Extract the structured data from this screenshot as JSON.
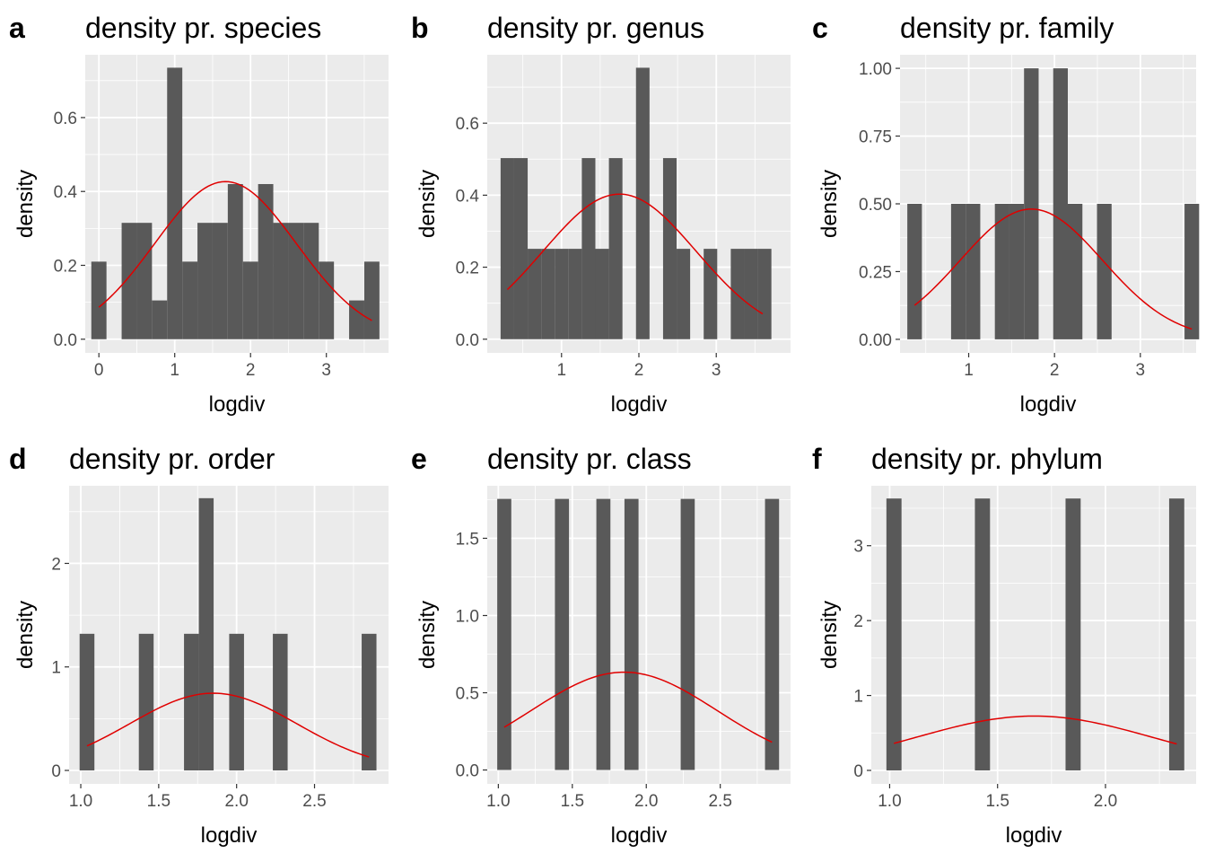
{
  "colors": {
    "panel_bg": "#ebebeb",
    "grid": "#ffffff",
    "bar": "#595959",
    "curve": "#e00000",
    "tick": "#4d4d4d",
    "text": "#000000"
  },
  "chart_data": [
    {
      "letter": "a",
      "type": "bar",
      "title": "density pr. species",
      "xlabel": "logdiv",
      "ylabel": "density",
      "xlim": [
        -0.18,
        3.82
      ],
      "ylim": [
        -0.037,
        0.77
      ],
      "xticks": [
        {
          "v": 0,
          "label": "0"
        },
        {
          "v": 1,
          "label": "1"
        },
        {
          "v": 2,
          "label": "2"
        },
        {
          "v": 3,
          "label": "3"
        }
      ],
      "yticks": [
        {
          "v": 0,
          "label": "0.0"
        },
        {
          "v": 0.2,
          "label": "0.2"
        },
        {
          "v": 0.4,
          "label": "0.4"
        },
        {
          "v": 0.6,
          "label": "0.6"
        }
      ],
      "bin_width": 0.2,
      "bins": [
        {
          "x": 0.0,
          "density": 0.21
        },
        {
          "x": 0.4,
          "density": 0.315
        },
        {
          "x": 0.6,
          "density": 0.315
        },
        {
          "x": 0.8,
          "density": 0.105
        },
        {
          "x": 1.0,
          "density": 0.735
        },
        {
          "x": 1.2,
          "density": 0.21
        },
        {
          "x": 1.4,
          "density": 0.315
        },
        {
          "x": 1.6,
          "density": 0.315
        },
        {
          "x": 1.8,
          "density": 0.42
        },
        {
          "x": 2.0,
          "density": 0.21
        },
        {
          "x": 2.2,
          "density": 0.42
        },
        {
          "x": 2.4,
          "density": 0.315
        },
        {
          "x": 2.6,
          "density": 0.315
        },
        {
          "x": 2.8,
          "density": 0.315
        },
        {
          "x": 3.0,
          "density": 0.21
        },
        {
          "x": 3.4,
          "density": 0.105
        },
        {
          "x": 3.6,
          "density": 0.21
        }
      ],
      "normal_curve": {
        "mean": 1.67,
        "sd": 0.935,
        "xmin": 0.0,
        "xmax": 3.6
      }
    },
    {
      "letter": "b",
      "type": "bar",
      "title": "density pr. genus",
      "xlabel": "logdiv",
      "ylabel": "density",
      "xlim": [
        0.04,
        3.96
      ],
      "ylim": [
        -0.038,
        0.79
      ],
      "xticks": [
        {
          "v": 1,
          "label": "1"
        },
        {
          "v": 2,
          "label": "2"
        },
        {
          "v": 3,
          "label": "3"
        }
      ],
      "yticks": [
        {
          "v": 0,
          "label": "0.0"
        },
        {
          "v": 0.2,
          "label": "0.2"
        },
        {
          "v": 0.4,
          "label": "0.4"
        },
        {
          "v": 0.6,
          "label": "0.6"
        }
      ],
      "bin_width": 0.175,
      "bins": [
        {
          "x": 0.3,
          "density": 0.503
        },
        {
          "x": 0.475,
          "density": 0.503
        },
        {
          "x": 0.65,
          "density": 0.251
        },
        {
          "x": 0.825,
          "density": 0.251
        },
        {
          "x": 1.0,
          "density": 0.251
        },
        {
          "x": 1.175,
          "density": 0.251
        },
        {
          "x": 1.35,
          "density": 0.503
        },
        {
          "x": 1.525,
          "density": 0.251
        },
        {
          "x": 1.7,
          "density": 0.503
        },
        {
          "x": 2.05,
          "density": 0.754
        },
        {
          "x": 2.4,
          "density": 0.503
        },
        {
          "x": 2.575,
          "density": 0.251
        },
        {
          "x": 2.925,
          "density": 0.251
        },
        {
          "x": 3.275,
          "density": 0.251
        },
        {
          "x": 3.45,
          "density": 0.251
        },
        {
          "x": 3.625,
          "density": 0.251
        }
      ],
      "normal_curve": {
        "mean": 1.75,
        "sd": 0.99,
        "xmin": 0.3,
        "xmax": 3.6
      }
    },
    {
      "letter": "c",
      "type": "bar",
      "title": "density pr. family",
      "xlabel": "logdiv",
      "ylabel": "density",
      "xlim": [
        0.2,
        3.65
      ],
      "ylim": [
        -0.05,
        1.05
      ],
      "xticks": [
        {
          "v": 1,
          "label": "1"
        },
        {
          "v": 2,
          "label": "2"
        },
        {
          "v": 3,
          "label": "3"
        }
      ],
      "yticks": [
        {
          "v": 0,
          "label": "0.00"
        },
        {
          "v": 0.25,
          "label": "0.25"
        },
        {
          "v": 0.5,
          "label": "0.50"
        },
        {
          "v": 0.75,
          "label": "0.75"
        },
        {
          "v": 1.0,
          "label": "1.00"
        }
      ],
      "bin_width": 0.17,
      "bins": [
        {
          "x": 0.37,
          "density": 0.5
        },
        {
          "x": 0.88,
          "density": 0.5
        },
        {
          "x": 1.05,
          "density": 0.5
        },
        {
          "x": 1.39,
          "density": 0.5
        },
        {
          "x": 1.56,
          "density": 0.5
        },
        {
          "x": 1.73,
          "density": 1.0
        },
        {
          "x": 2.07,
          "density": 1.0
        },
        {
          "x": 2.24,
          "density": 0.5
        },
        {
          "x": 2.58,
          "density": 0.5
        },
        {
          "x": 3.6,
          "density": 0.5
        }
      ],
      "normal_curve": {
        "mean": 1.73,
        "sd": 0.83,
        "xmin": 0.37,
        "xmax": 3.6
      }
    },
    {
      "letter": "d",
      "type": "bar",
      "title": "density pr. order",
      "xlabel": "logdiv",
      "ylabel": "density",
      "xlim": [
        0.925,
        2.975
      ],
      "ylim": [
        -0.13,
        2.75
      ],
      "xticks": [
        {
          "v": 1.0,
          "label": "1.0"
        },
        {
          "v": 1.5,
          "label": "1.5"
        },
        {
          "v": 2.0,
          "label": "2.0"
        },
        {
          "v": 2.5,
          "label": "2.5"
        }
      ],
      "yticks": [
        {
          "v": 0,
          "label": "0"
        },
        {
          "v": 1,
          "label": "1"
        },
        {
          "v": 2,
          "label": "2"
        }
      ],
      "bin_width": 0.095,
      "bins": [
        {
          "x": 1.04,
          "density": 1.32
        },
        {
          "x": 1.42,
          "density": 1.32
        },
        {
          "x": 1.71,
          "density": 1.32
        },
        {
          "x": 1.805,
          "density": 2.63
        },
        {
          "x": 2.0,
          "density": 1.32
        },
        {
          "x": 2.28,
          "density": 1.32
        },
        {
          "x": 2.85,
          "density": 1.32
        }
      ],
      "normal_curve": {
        "mean": 1.85,
        "sd": 0.535,
        "xmin": 1.04,
        "xmax": 2.85
      }
    },
    {
      "letter": "e",
      "type": "bar",
      "title": "density pr. class",
      "xlabel": "logdiv",
      "ylabel": "density",
      "xlim": [
        0.925,
        2.975
      ],
      "ylim": [
        -0.09,
        1.84
      ],
      "xticks": [
        {
          "v": 1.0,
          "label": "1.0"
        },
        {
          "v": 1.5,
          "label": "1.5"
        },
        {
          "v": 2.0,
          "label": "2.0"
        },
        {
          "v": 2.5,
          "label": "2.5"
        }
      ],
      "yticks": [
        {
          "v": 0,
          "label": "0.0"
        },
        {
          "v": 0.5,
          "label": "0.5"
        },
        {
          "v": 1.0,
          "label": "1.0"
        },
        {
          "v": 1.5,
          "label": "1.5"
        }
      ],
      "bin_width": 0.095,
      "bins": [
        {
          "x": 1.04,
          "density": 1.755
        },
        {
          "x": 1.43,
          "density": 1.755
        },
        {
          "x": 1.71,
          "density": 1.755
        },
        {
          "x": 1.9,
          "density": 1.755
        },
        {
          "x": 2.28,
          "density": 1.755
        },
        {
          "x": 2.85,
          "density": 1.755
        }
      ],
      "normal_curve": {
        "mean": 1.85,
        "sd": 0.63,
        "xmin": 1.04,
        "xmax": 2.85
      }
    },
    {
      "letter": "f",
      "type": "bar",
      "title": "density pr. phylum",
      "xlabel": "logdiv",
      "ylabel": "density",
      "xlim": [
        0.915,
        2.42
      ],
      "ylim": [
        -0.18,
        3.8
      ],
      "xticks": [
        {
          "v": 1.0,
          "label": "1.0"
        },
        {
          "v": 1.5,
          "label": "1.5"
        },
        {
          "v": 2.0,
          "label": "2.0"
        }
      ],
      "yticks": [
        {
          "v": 0,
          "label": "0"
        },
        {
          "v": 1,
          "label": "1"
        },
        {
          "v": 2,
          "label": "2"
        },
        {
          "v": 3,
          "label": "3"
        }
      ],
      "bin_width": 0.07,
      "bins": [
        {
          "x": 1.02,
          "density": 3.63
        },
        {
          "x": 1.43,
          "density": 3.63
        },
        {
          "x": 1.85,
          "density": 3.63
        },
        {
          "x": 2.33,
          "density": 3.63
        }
      ],
      "normal_curve": {
        "mean": 1.67,
        "sd": 0.55,
        "xmin": 1.02,
        "xmax": 2.33
      }
    }
  ]
}
